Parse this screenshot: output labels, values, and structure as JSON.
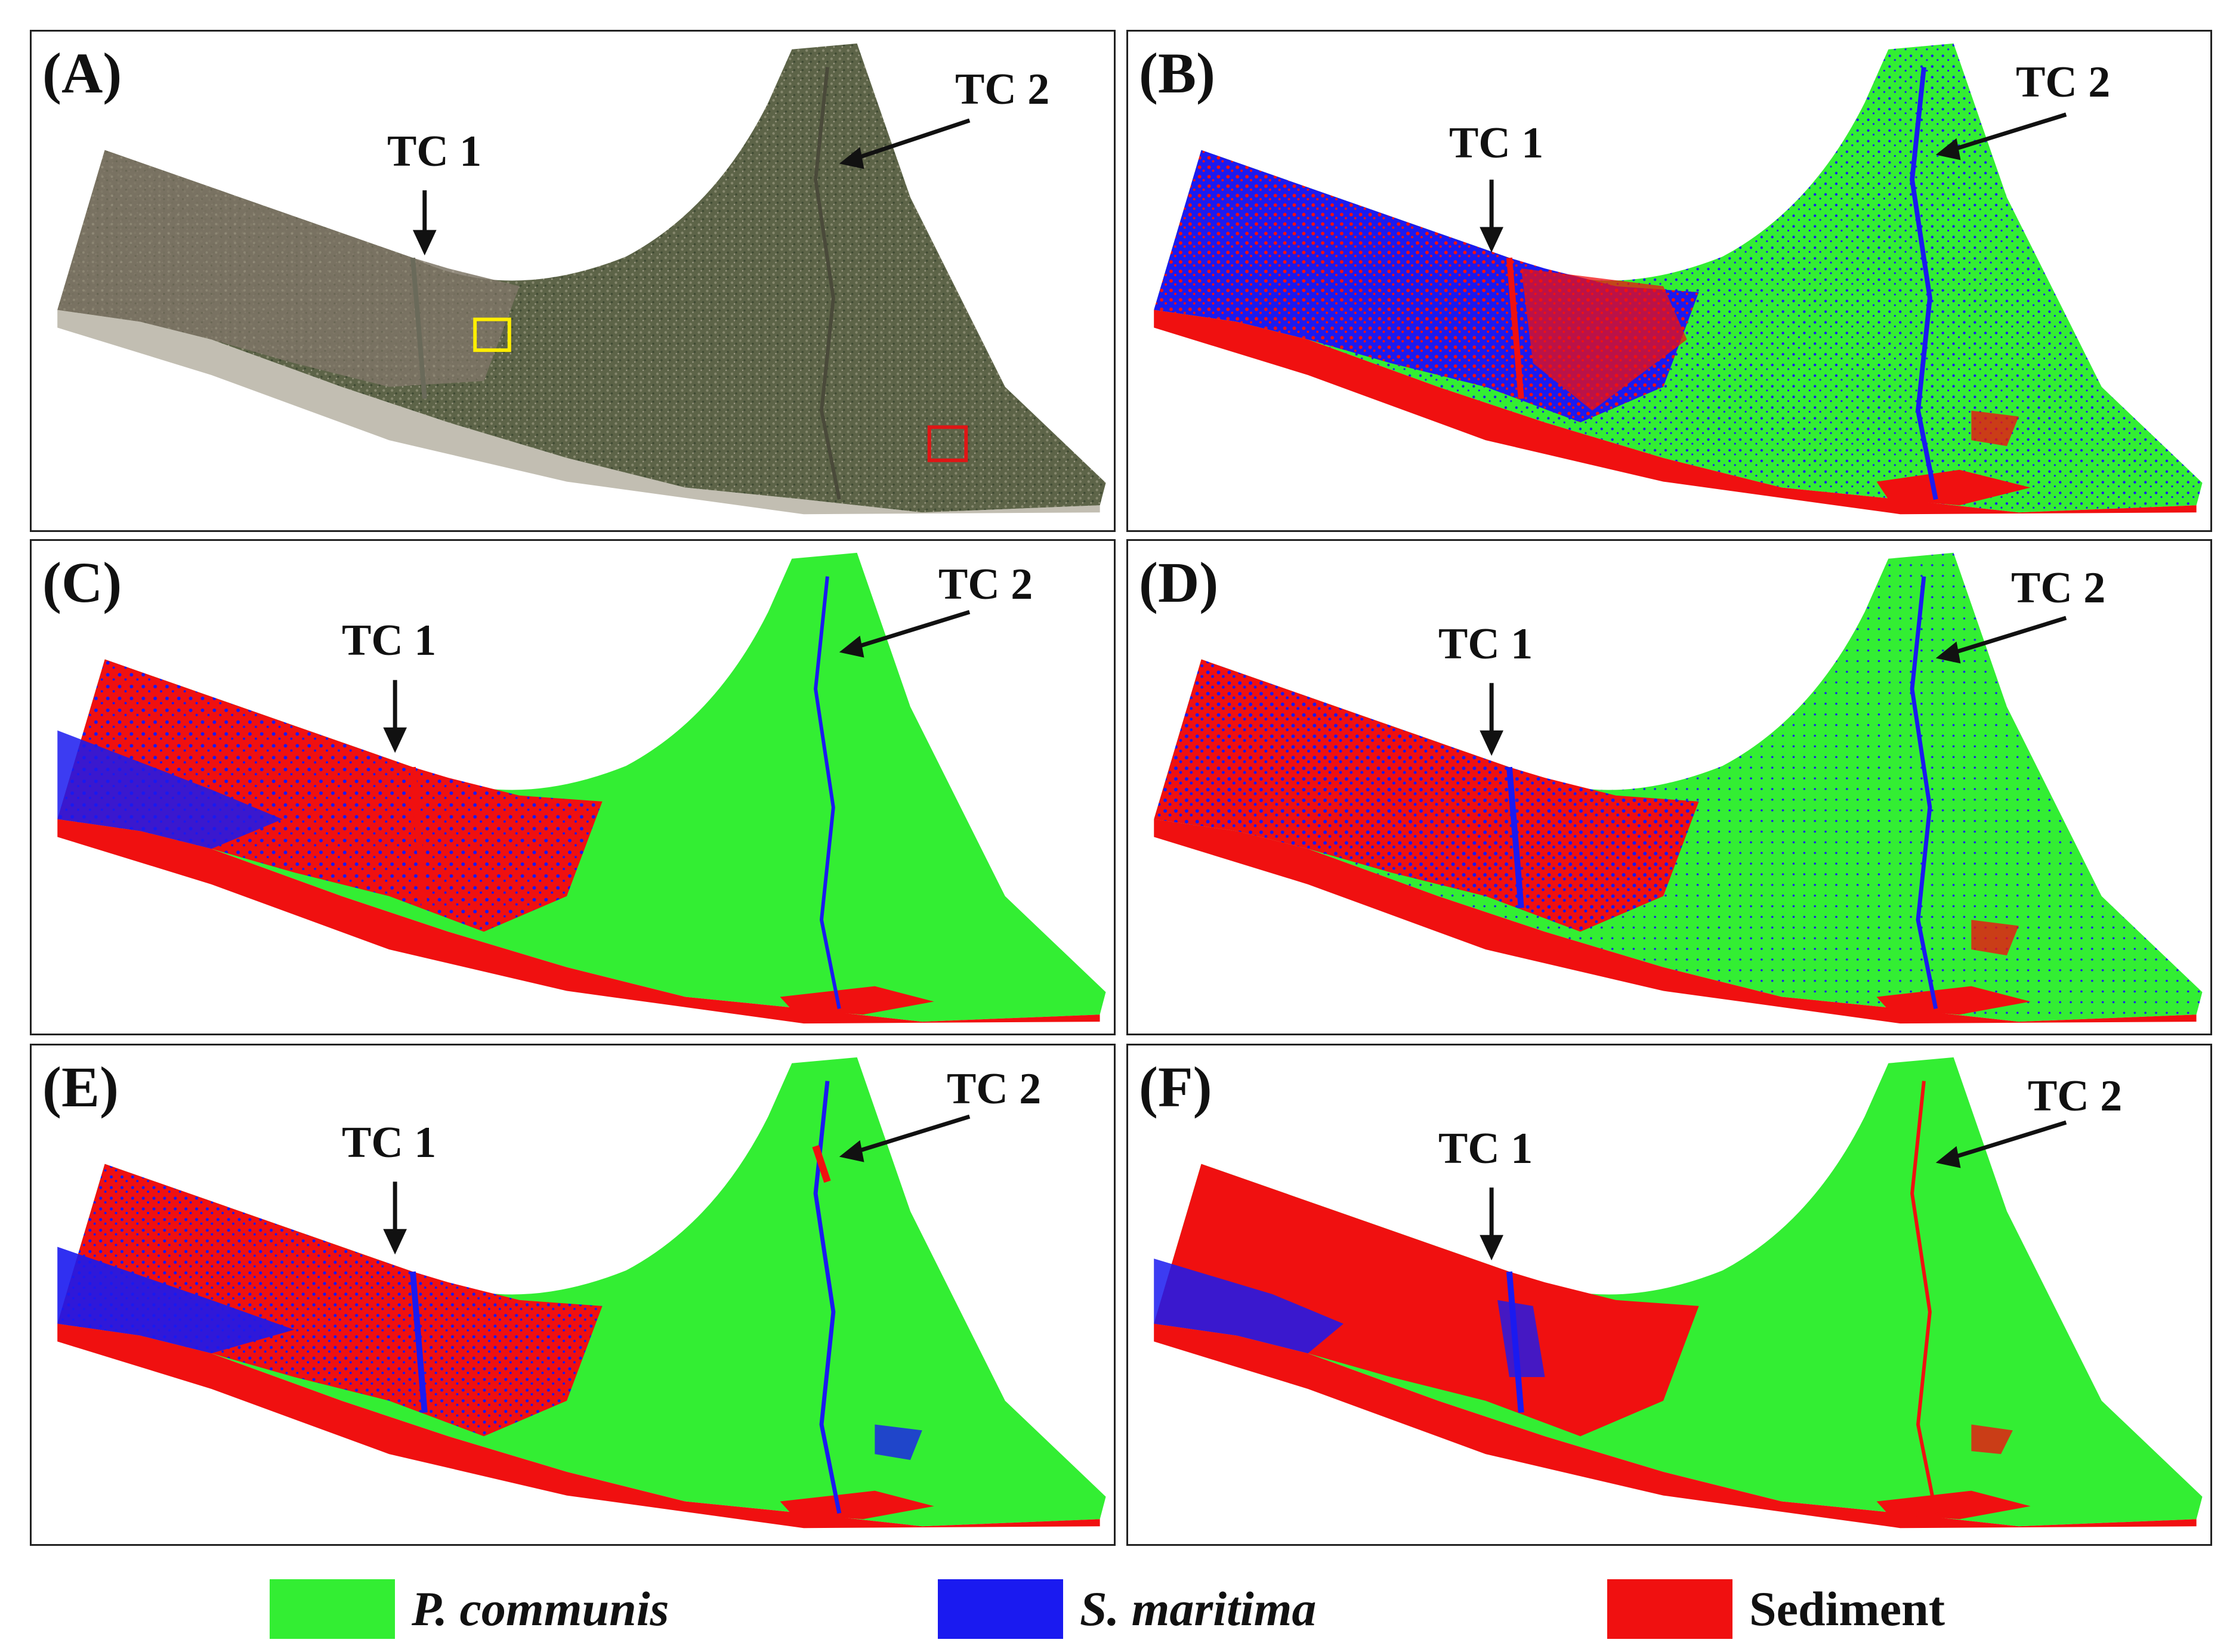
{
  "panels": [
    {
      "label": "(A)",
      "tc1": "TC 1",
      "tc2": "TC 2",
      "variant": "photo"
    },
    {
      "label": "(B)",
      "tc1": "TC 1",
      "tc2": "TC 2",
      "variant": "mixed"
    },
    {
      "label": "(C)",
      "tc1": "TC 1",
      "tc2": "TC 2",
      "variant": "green"
    },
    {
      "label": "(D)",
      "tc1": "TC 1",
      "tc2": "TC 2",
      "variant": "mixed"
    },
    {
      "label": "(E)",
      "tc1": "TC 1",
      "tc2": "TC 2",
      "variant": "green"
    },
    {
      "label": "(F)",
      "tc1": "TC 1",
      "tc2": "TC 2",
      "variant": "redleft"
    }
  ],
  "legend": [
    {
      "label": "P. communis",
      "color": "#33ee33",
      "italic": true
    },
    {
      "label": "S. maritima",
      "color": "#1a1af0",
      "italic": true
    },
    {
      "label": "Sediment",
      "color": "#f01010",
      "italic": false
    }
  ],
  "colors": {
    "green": "#33ee33",
    "blue": "#1a1af0",
    "red": "#f01010",
    "photo_dark": "#5b6047",
    "photo_mid": "#7a7563",
    "yellow_box": "#ffee00",
    "red_box": "#e01515"
  }
}
